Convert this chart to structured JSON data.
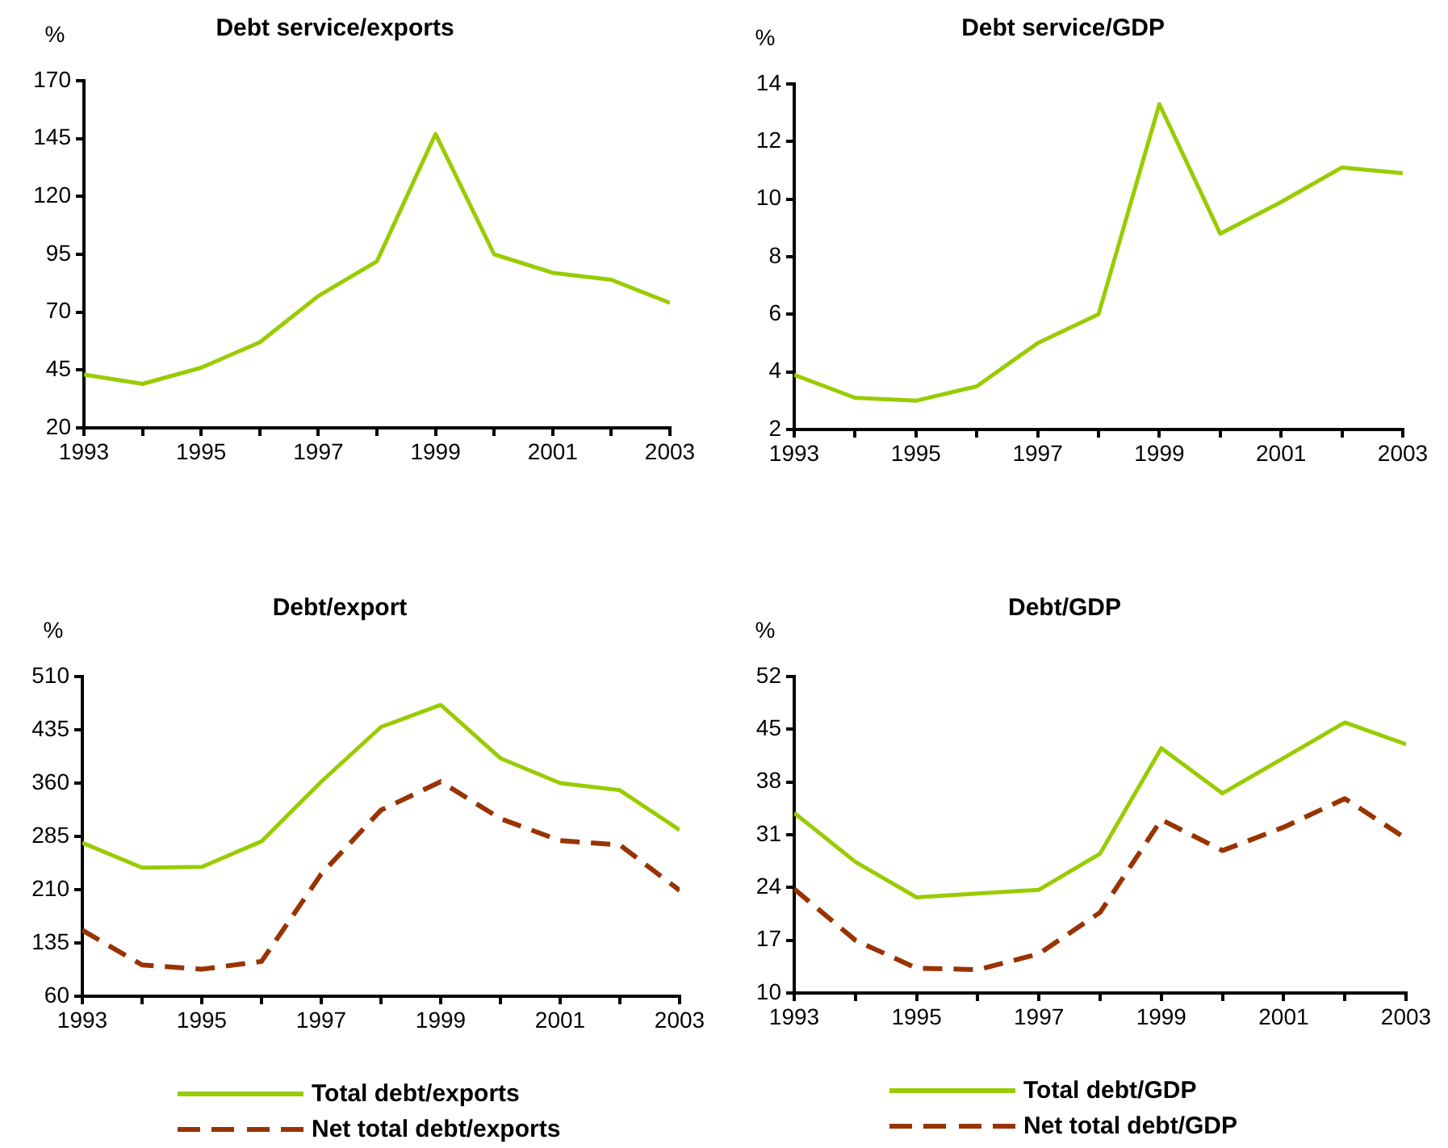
{
  "chart_data": [
    {
      "type": "line",
      "title": "Debt service/exports",
      "ylabel": "%",
      "x": [
        1993,
        1994,
        1995,
        1996,
        1997,
        1998,
        1999,
        2000,
        2001,
        2002,
        2003
      ],
      "xlim": [
        1993,
        2003
      ],
      "xticks": [
        1993,
        {
          "value": 1994,
          "label": null
        },
        1995,
        {
          "value": 1996,
          "label": null
        },
        1997,
        {
          "value": 1998,
          "label": null
        },
        1999,
        {
          "value": 2000,
          "label": null
        },
        2001,
        {
          "value": 2002,
          "label": null
        },
        2003
      ],
      "ylim": [
        20,
        170
      ],
      "yticks": [
        20,
        45,
        70,
        95,
        120,
        145,
        170
      ],
      "series": [
        {
          "color": "#99cc00",
          "values": [
            43,
            39,
            46,
            57,
            77,
            92,
            147,
            95,
            87,
            84,
            74
          ]
        }
      ]
    },
    {
      "type": "line",
      "title": "Debt service/GDP",
      "ylabel": "%",
      "x": [
        1993,
        1994,
        1995,
        1996,
        1997,
        1998,
        1999,
        2000,
        2001,
        2002,
        2003
      ],
      "xlim": [
        1993,
        2003
      ],
      "xticks": [
        1993,
        {
          "value": 1994,
          "label": null
        },
        1995,
        {
          "value": 1996,
          "label": null
        },
        1997,
        {
          "value": 1998,
          "label": null
        },
        1999,
        {
          "value": 2000,
          "label": null
        },
        2001,
        {
          "value": 2002,
          "label": null
        },
        2003
      ],
      "ylim": [
        2,
        14
      ],
      "yticks": [
        2,
        4,
        6,
        8,
        10,
        12,
        14
      ],
      "series": [
        {
          "color": "#99cc00",
          "values": [
            3.9,
            3.1,
            3.0,
            3.5,
            5.0,
            6.0,
            13.3,
            8.8,
            9.9,
            11.1,
            10.9
          ]
        }
      ]
    },
    {
      "type": "line",
      "title": "Debt/export",
      "ylabel": "%",
      "x": [
        1993,
        1994,
        1995,
        1996,
        1997,
        1998,
        1999,
        2000,
        2001,
        2002,
        2003
      ],
      "xlim": [
        1993,
        2003
      ],
      "xticks": [
        1993,
        {
          "value": 1994,
          "label": null
        },
        1995,
        {
          "value": 1996,
          "label": null
        },
        1997,
        {
          "value": 1998,
          "label": null
        },
        1999,
        {
          "value": 2000,
          "label": null
        },
        2001,
        {
          "value": 2002,
          "label": null
        },
        2003
      ],
      "ylim": [
        60,
        510
      ],
      "yticks": [
        60,
        135,
        210,
        285,
        360,
        435,
        510
      ],
      "legend": "bottom",
      "series": [
        {
          "name": "Total debt/exports",
          "color": "#99cc00",
          "values": [
            276,
            241,
            242,
            278,
            362,
            439,
            470,
            395,
            360,
            350,
            294
          ]
        },
        {
          "name": "Net total debt/exports",
          "color": "#993300",
          "line_style": "dashed",
          "values": [
            153,
            104,
            98,
            109,
            232,
            322,
            362,
            310,
            279,
            273,
            209
          ]
        }
      ]
    },
    {
      "type": "line",
      "title": "Debt/GDP",
      "ylabel": "%",
      "x": [
        1993,
        1994,
        1995,
        1996,
        1997,
        1998,
        1999,
        2000,
        2001,
        2002,
        2003
      ],
      "xlim": [
        1993,
        2003
      ],
      "xticks": [
        1993,
        {
          "value": 1994,
          "label": null
        },
        1995,
        {
          "value": 1996,
          "label": null
        },
        1997,
        {
          "value": 1998,
          "label": null
        },
        1999,
        {
          "value": 2000,
          "label": null
        },
        2001,
        {
          "value": 2002,
          "label": null
        },
        2003
      ],
      "ylim": [
        10,
        52
      ],
      "yticks": [
        10,
        17,
        24,
        31,
        38,
        45,
        52
      ],
      "legend": "bottom",
      "series": [
        {
          "name": "Total debt/GDP",
          "color": "#99cc00",
          "values": [
            33.9,
            27.4,
            22.7,
            23.2,
            23.7,
            28.5,
            42.5,
            36.5,
            41.2,
            45.9,
            43.0
          ]
        },
        {
          "name": "Net total debt/GDP",
          "color": "#993300",
          "line_style": "dashed",
          "values": [
            23.8,
            17.0,
            13.3,
            13.1,
            15.2,
            20.7,
            33.0,
            28.9,
            32.0,
            35.8,
            30.5
          ]
        }
      ]
    }
  ]
}
